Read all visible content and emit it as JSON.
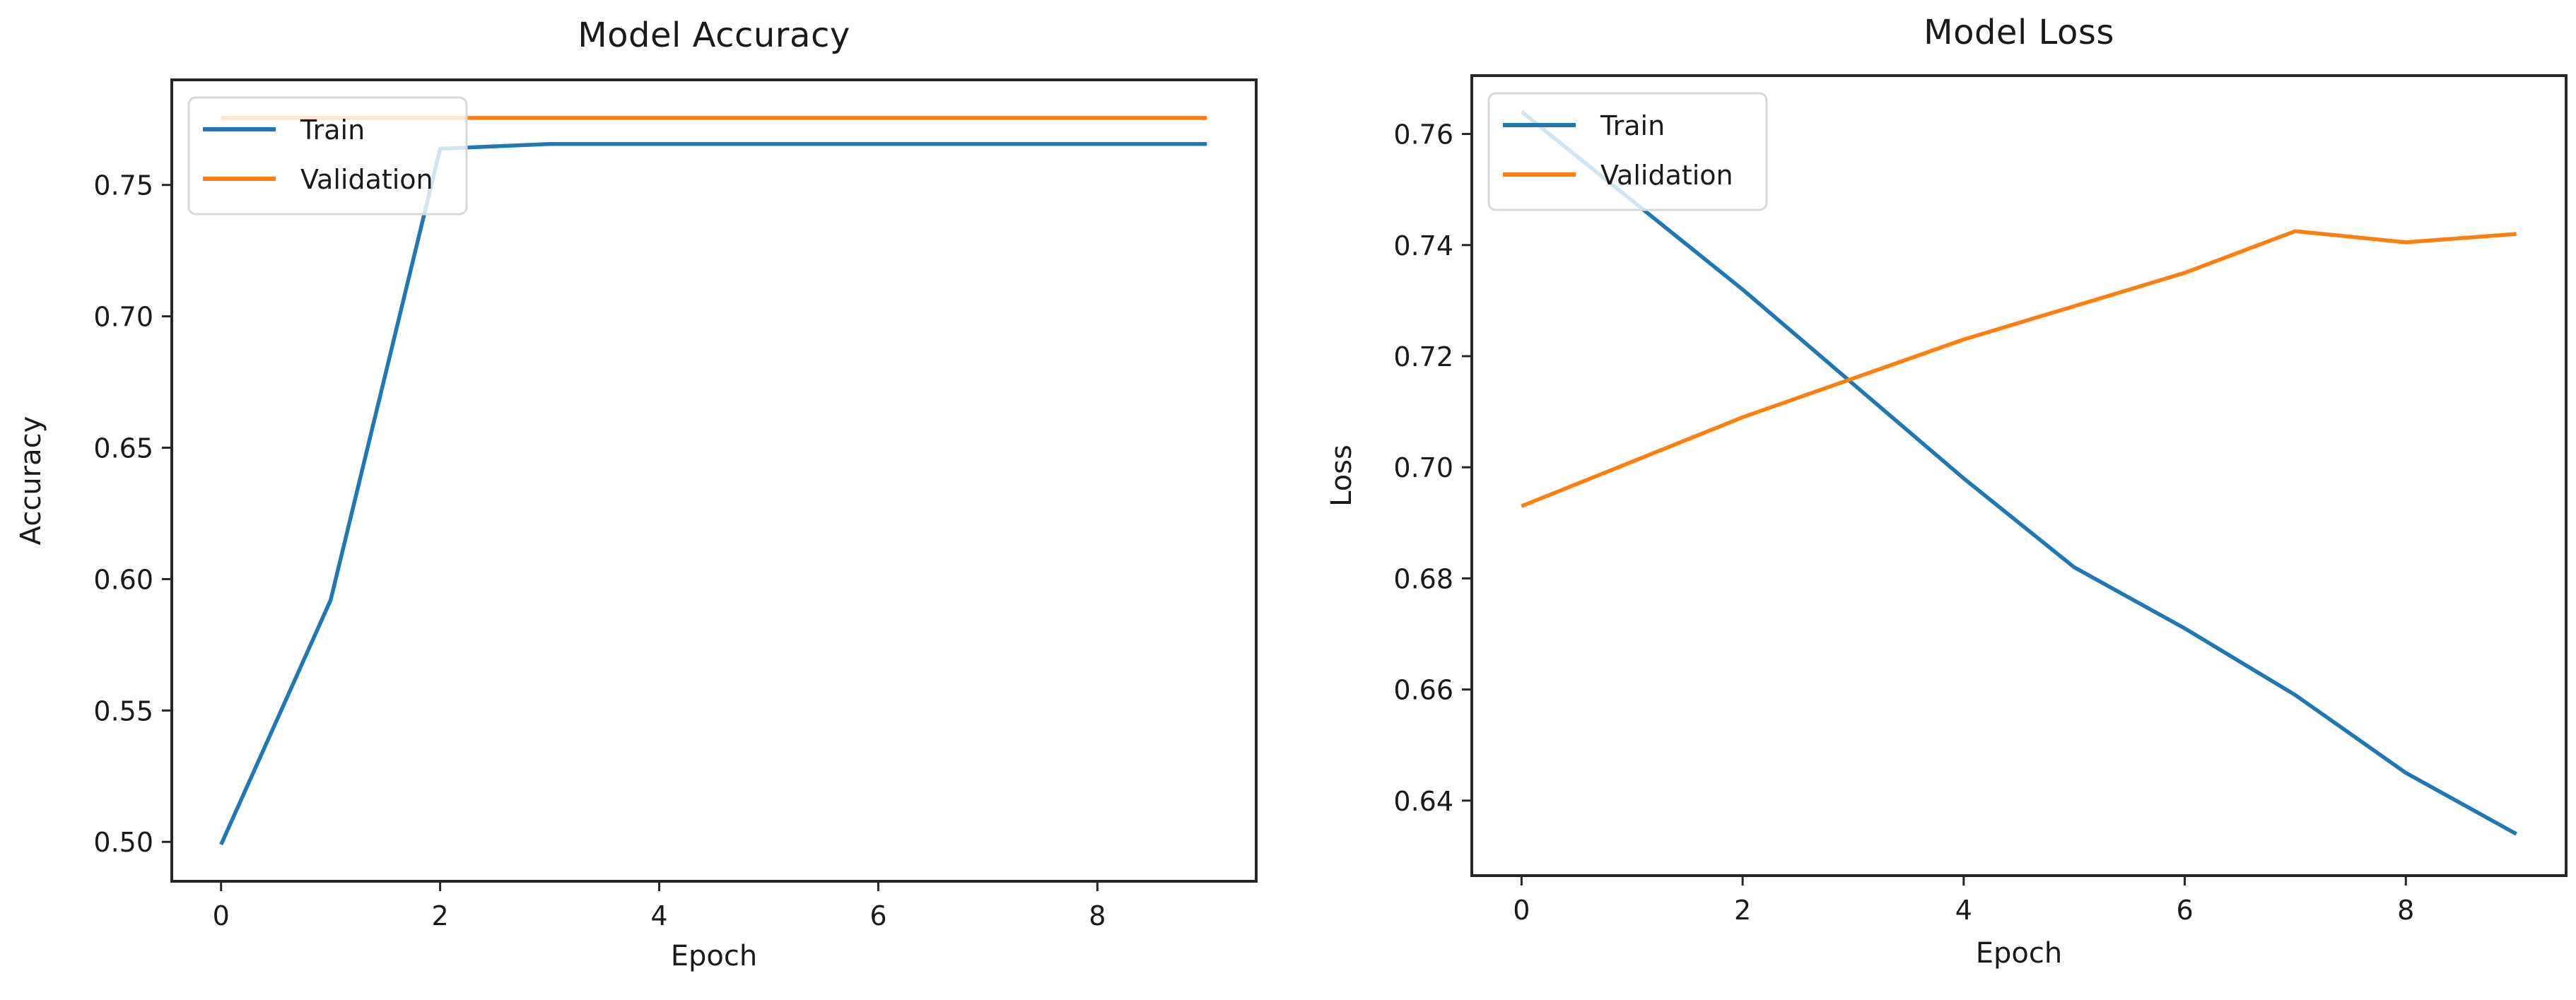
{
  "figure": {
    "background": "#ffffff",
    "spine_color": "#262626",
    "text_color": "#1a1a1a",
    "legend_border_color": "#d9d9d9",
    "legend_fill_alpha": 0.8
  },
  "chart_data": [
    {
      "type": "line",
      "title": "Model Accuracy",
      "xlabel": "Epoch",
      "ylabel": "Accuracy",
      "x": [
        0,
        1,
        2,
        3,
        4,
        5,
        6,
        7,
        8,
        9
      ],
      "series": [
        {
          "name": "Train",
          "color": "#1f77b4",
          "values": [
            0.499,
            0.592,
            0.7638,
            0.7656,
            0.7656,
            0.7656,
            0.7656,
            0.7656,
            0.7656,
            0.7656
          ]
        },
        {
          "name": "Validation",
          "color": "#ff7f0e",
          "values": [
            0.7755,
            0.7755,
            0.7755,
            0.7755,
            0.7755,
            0.7755,
            0.7755,
            0.7755,
            0.7755,
            0.7755
          ]
        }
      ],
      "xlim": [
        -0.45,
        9.45
      ],
      "ylim": [
        0.485,
        0.79
      ],
      "xticks": {
        "values": [
          0,
          2,
          4,
          6,
          8
        ],
        "labels": [
          "0",
          "2",
          "4",
          "6",
          "8"
        ]
      },
      "yticks": {
        "values": [
          0.5,
          0.55,
          0.6,
          0.65,
          0.7,
          0.75
        ],
        "labels": [
          "0.50",
          "0.55",
          "0.60",
          "0.65",
          "0.70",
          "0.75"
        ]
      },
      "legend": {
        "position": "upper left",
        "labels": [
          "Train",
          "Validation"
        ]
      },
      "grid": false
    },
    {
      "type": "line",
      "title": "Model Loss",
      "xlabel": "Epoch",
      "ylabel": "Loss",
      "x": [
        0,
        1,
        2,
        3,
        4,
        5,
        6,
        7,
        8,
        9
      ],
      "series": [
        {
          "name": "Train",
          "color": "#1f77b4",
          "values": [
            0.764,
            0.748,
            0.732,
            0.715,
            0.698,
            0.682,
            0.671,
            0.659,
            0.645,
            0.634
          ]
        },
        {
          "name": "Validation",
          "color": "#ff7f0e",
          "values": [
            0.693,
            0.701,
            0.709,
            0.716,
            0.723,
            0.729,
            0.735,
            0.7425,
            0.7405,
            0.742
          ]
        }
      ],
      "xlim": [
        -0.45,
        9.45
      ],
      "ylim": [
        0.6265,
        0.7705
      ],
      "xticks": {
        "values": [
          0,
          2,
          4,
          6,
          8
        ],
        "labels": [
          "0",
          "2",
          "4",
          "6",
          "8"
        ]
      },
      "yticks": {
        "values": [
          0.64,
          0.66,
          0.68,
          0.7,
          0.72,
          0.74,
          0.76
        ],
        "labels": [
          "0.64",
          "0.66",
          "0.68",
          "0.70",
          "0.72",
          "0.74",
          "0.76"
        ]
      },
      "legend": {
        "position": "upper left",
        "labels": [
          "Train",
          "Validation"
        ]
      },
      "grid": false
    }
  ]
}
